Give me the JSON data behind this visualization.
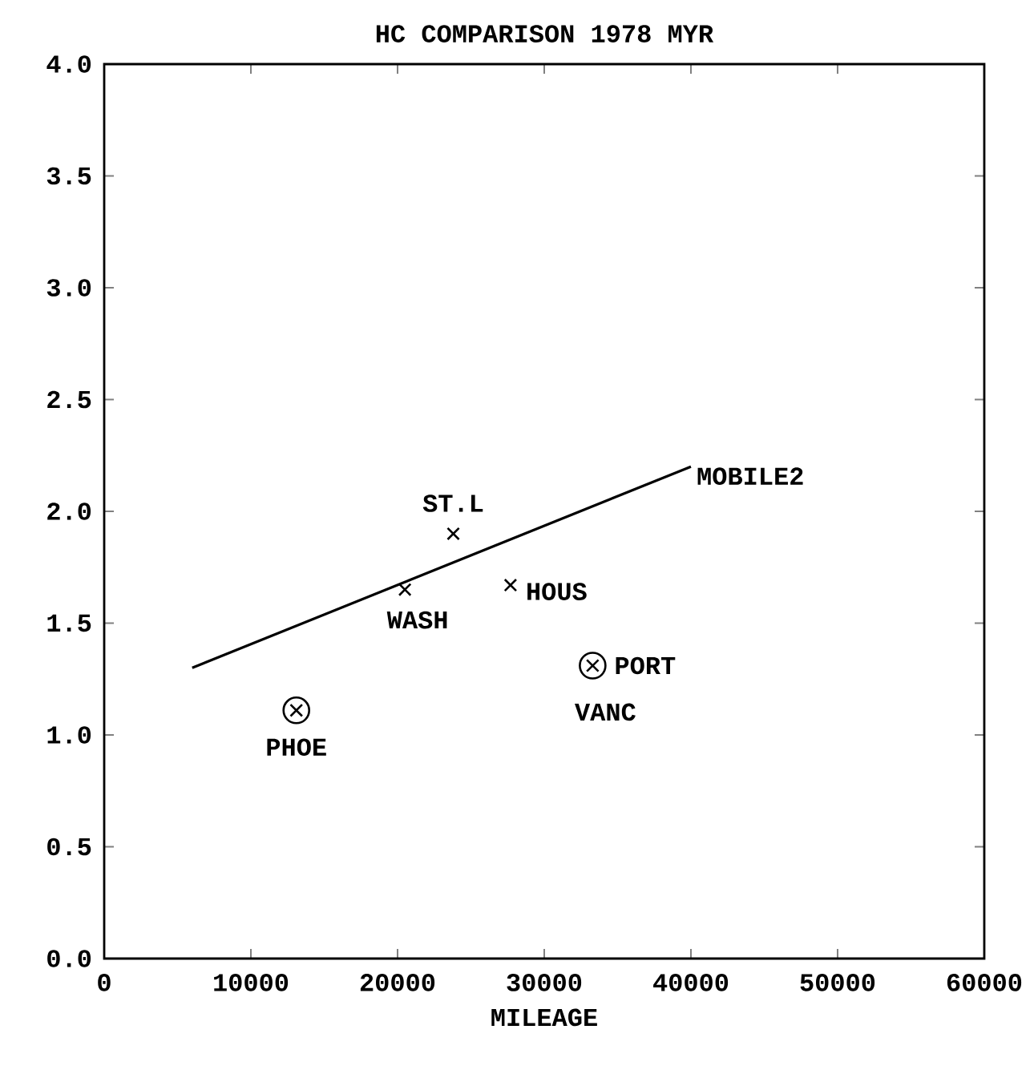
{
  "chart_data": {
    "type": "scatter",
    "title": "HC COMPARISON  1978 MYR",
    "xlabel": "MILEAGE",
    "xlim": [
      0,
      60000
    ],
    "ylim": [
      0,
      4
    ],
    "xticks": [
      0,
      10000,
      20000,
      30000,
      40000,
      50000,
      60000
    ],
    "yticks": [
      {
        "value": 0,
        "label": "0.0"
      },
      {
        "value": 0.5,
        "label": "0.5"
      },
      {
        "value": 1,
        "label": "1.0"
      },
      {
        "value": 1.5,
        "label": "1.5"
      },
      {
        "value": 2,
        "label": "2.0"
      },
      {
        "value": 2.5,
        "label": "2.5"
      },
      {
        "value": 3,
        "label": "3.0"
      },
      {
        "value": 3.5,
        "label": "3.5"
      },
      {
        "value": 4,
        "label": "4.0"
      }
    ],
    "grid": false,
    "series": [
      {
        "type": "line",
        "color": "#000000",
        "x": [
          6000,
          40000
        ],
        "values": [
          1.3,
          2.2
        ],
        "marker": "none",
        "line_style": "solid"
      },
      {
        "color": "#000000",
        "x": [
          20500,
          23800,
          27700
        ],
        "values": [
          1.65,
          1.9,
          1.67
        ],
        "marker": "cross"
      },
      {
        "color": "#000000",
        "x": [
          13100,
          33300
        ],
        "values": [
          1.11,
          1.31
        ],
        "marker": "circle"
      }
    ],
    "annotations": [
      {
        "text": "ST.L",
        "x": 23800,
        "y": 1.9
      },
      {
        "text": "WASH",
        "x": 20500,
        "y": 1.65
      },
      {
        "text": "HOUS",
        "x": 27700,
        "y": 1.67
      },
      {
        "text": "PHOE",
        "x": 13100,
        "y": 1.11
      },
      {
        "text": "PORT",
        "x": 33300,
        "y": 1.31
      },
      {
        "text": "VANC",
        "x": 33300,
        "y": 1.31
      },
      {
        "text": "MOBILE2",
        "x": 40000,
        "y": 2.2
      }
    ]
  }
}
